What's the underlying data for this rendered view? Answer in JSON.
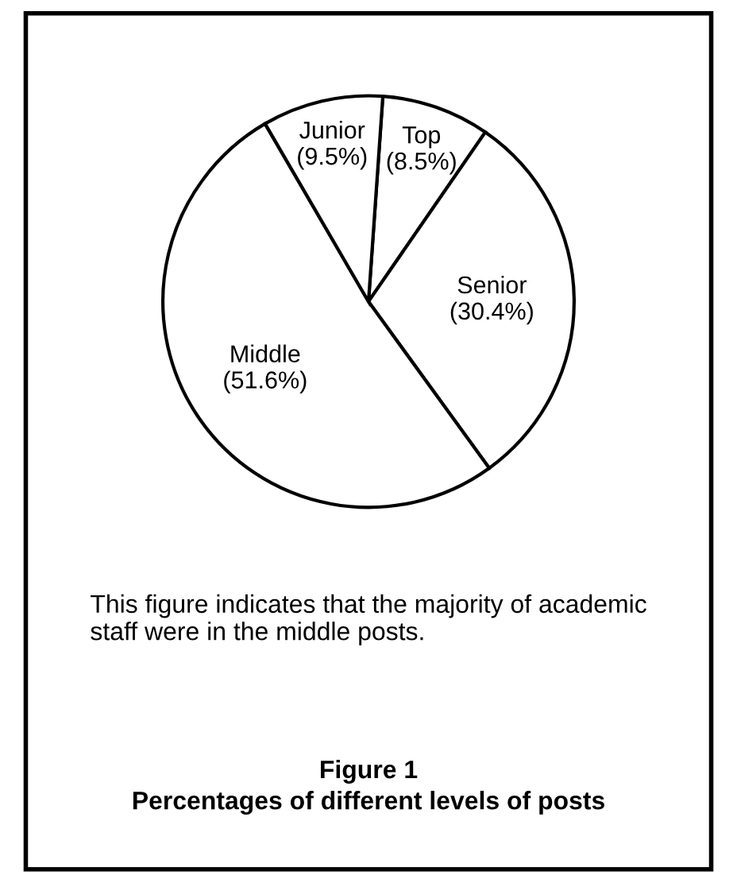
{
  "chart_data": {
    "type": "pie",
    "title": "Figure 1",
    "subtitle": "Percentages of different levels of posts",
    "categories": [
      "Top",
      "Senior",
      "Middle",
      "Junior"
    ],
    "values": [
      8.5,
      30.4,
      51.6,
      9.5
    ],
    "colors": [
      "#ffffff",
      "#ffffff",
      "#ffffff",
      "#ffffff"
    ],
    "value_labels": [
      "(8.5%)",
      "(30.4%)",
      "(51.6%)",
      "(9.5%)"
    ],
    "annotations": [
      "This figure indicates that the majority of academic staff were in the middle posts."
    ]
  }
}
